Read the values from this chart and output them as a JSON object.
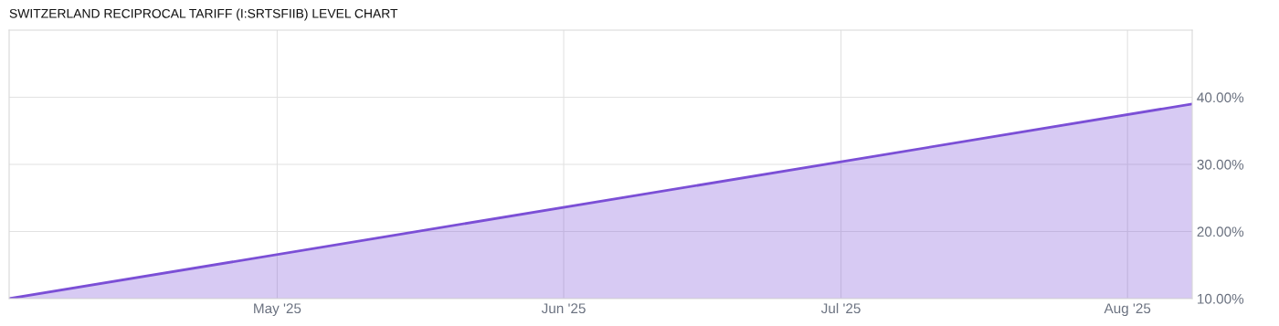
{
  "chart_data": {
    "type": "area",
    "title": "SWITZERLAND RECIPROCAL TARIFF (I:SRTSFIIB) LEVEL CHART",
    "x": [
      "2025-04-02",
      "2025-08-08"
    ],
    "series": [
      {
        "color": "#7b4fd6",
        "values": [
          10,
          39
        ]
      }
    ],
    "xlim": [
      "2025-04-02",
      "2025-08-08"
    ],
    "xticks": [
      {
        "value": "2025-05-01",
        "label": "May '25"
      },
      {
        "value": "2025-06-01",
        "label": "Jun '25"
      },
      {
        "value": "2025-07-01",
        "label": "Jul '25"
      },
      {
        "value": "2025-08-01",
        "label": "Aug '25"
      }
    ],
    "ylim": [
      10,
      50
    ],
    "yticks": [
      {
        "value": 10,
        "label": "10.00%"
      },
      {
        "value": 20,
        "label": "20.00%"
      },
      {
        "value": 30,
        "label": "30.00%"
      },
      {
        "value": 40,
        "label": "40.00%"
      }
    ],
    "grid": true
  }
}
